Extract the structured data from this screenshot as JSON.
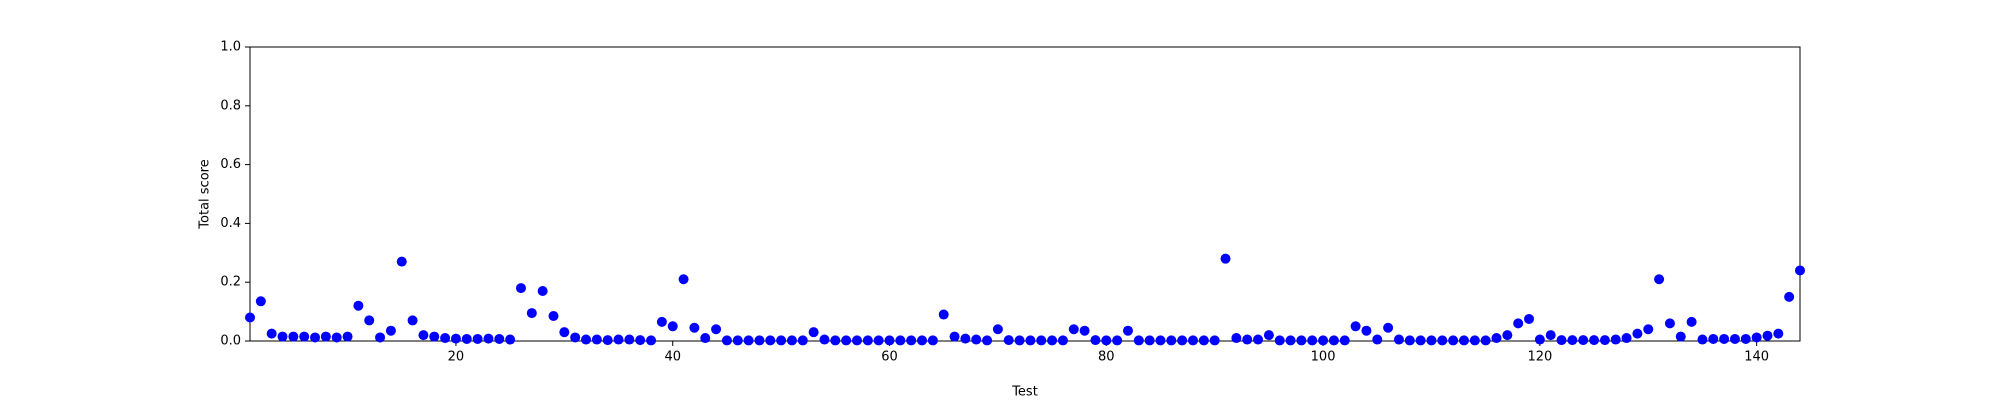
{
  "chart_data": {
    "type": "scatter",
    "xlabel": "Test",
    "ylabel": "Total score",
    "color": "#0000ff",
    "x": [
      1,
      2,
      3,
      4,
      5,
      6,
      7,
      8,
      9,
      10,
      11,
      12,
      13,
      14,
      15,
      16,
      17,
      18,
      19,
      20,
      21,
      22,
      23,
      24,
      25,
      26,
      27,
      28,
      29,
      30,
      31,
      32,
      33,
      34,
      35,
      36,
      37,
      38,
      39,
      40,
      41,
      42,
      43,
      44,
      45,
      46,
      47,
      48,
      49,
      50,
      51,
      52,
      53,
      54,
      55,
      56,
      57,
      58,
      59,
      60,
      61,
      62,
      63,
      64,
      65,
      66,
      67,
      68,
      69,
      70,
      71,
      72,
      73,
      74,
      75,
      76,
      77,
      78,
      79,
      80,
      81,
      82,
      83,
      84,
      85,
      86,
      87,
      88,
      89,
      90,
      91,
      92,
      93,
      94,
      95,
      96,
      97,
      98,
      99,
      100,
      101,
      102,
      103,
      104,
      105,
      106,
      107,
      108,
      109,
      110,
      111,
      112,
      113,
      114,
      115,
      116,
      117,
      118,
      119,
      120,
      121,
      122,
      123,
      124,
      125,
      126,
      127,
      128,
      129,
      130,
      131,
      132,
      133,
      134,
      135,
      136,
      137,
      138,
      139,
      140,
      141,
      142,
      143,
      144
    ],
    "values": [
      0.08,
      0.135,
      0.025,
      0.015,
      0.015,
      0.015,
      0.012,
      0.015,
      0.012,
      0.015,
      0.12,
      0.07,
      0.012,
      0.035,
      0.27,
      0.07,
      0.02,
      0.015,
      0.01,
      0.008,
      0.007,
      0.007,
      0.008,
      0.007,
      0.005,
      0.18,
      0.095,
      0.17,
      0.085,
      0.03,
      0.012,
      0.005,
      0.005,
      0.003,
      0.005,
      0.005,
      0.003,
      0.002,
      0.065,
      0.05,
      0.21,
      0.045,
      0.01,
      0.04,
      0.002,
      0.002,
      0.002,
      0.002,
      0.002,
      0.002,
      0.002,
      0.002,
      0.03,
      0.005,
      0.002,
      0.002,
      0.002,
      0.002,
      0.002,
      0.002,
      0.002,
      0.002,
      0.002,
      0.002,
      0.09,
      0.015,
      0.008,
      0.005,
      0.002,
      0.04,
      0.003,
      0.002,
      0.002,
      0.002,
      0.002,
      0.002,
      0.04,
      0.035,
      0.003,
      0.002,
      0.002,
      0.035,
      0.002,
      0.002,
      0.002,
      0.002,
      0.002,
      0.002,
      0.002,
      0.002,
      0.28,
      0.01,
      0.005,
      0.005,
      0.02,
      0.002,
      0.002,
      0.002,
      0.002,
      0.002,
      0.002,
      0.002,
      0.05,
      0.035,
      0.005,
      0.045,
      0.005,
      0.002,
      0.002,
      0.002,
      0.002,
      0.002,
      0.002,
      0.002,
      0.002,
      0.01,
      0.02,
      0.06,
      0.075,
      0.005,
      0.02,
      0.003,
      0.003,
      0.003,
      0.003,
      0.003,
      0.005,
      0.01,
      0.025,
      0.04,
      0.21,
      0.06,
      0.015,
      0.065,
      0.005,
      0.007,
      0.007,
      0.007,
      0.007,
      0.012,
      0.018,
      0.025,
      0.15,
      0.24
    ],
    "xlim": [
      1,
      144
    ],
    "xticks": [
      20,
      40,
      60,
      80,
      100,
      120,
      140
    ],
    "ylim": [
      0,
      1
    ],
    "yticks": [
      {
        "value": 0,
        "label": "0.0"
      },
      0.2,
      0.4,
      0.6,
      0.8,
      {
        "value": 1,
        "label": "1.0"
      }
    ]
  }
}
